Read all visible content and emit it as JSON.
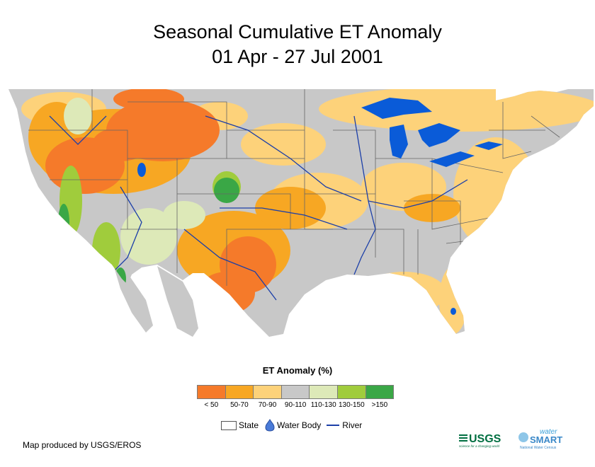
{
  "title": "Seasonal Cumulative ET Anomaly",
  "subtitle": "01 Apr - 27 Jul 2001",
  "legend": {
    "title": "ET Anomaly (%)",
    "classes": [
      {
        "label": "< 50",
        "color": "#f57a2a"
      },
      {
        "label": "50-70",
        "color": "#f7a723"
      },
      {
        "label": "70-90",
        "color": "#fdd27a"
      },
      {
        "label": "90-110",
        "color": "#c8c8c8"
      },
      {
        "label": "110-130",
        "color": "#dde9b8"
      },
      {
        "label": "130-150",
        "color": "#a0cc3c"
      },
      {
        "label": ">150",
        "color": "#3aa746"
      }
    ]
  },
  "key": {
    "state": "State",
    "water_body": "Water Body",
    "river": "River"
  },
  "credit": "Map produced by USGS/EROS",
  "logos": {
    "usgs": "USGS",
    "usgs_tagline": "science for a changing world",
    "watersmart_water": "water",
    "watersmart_smart": "SMART",
    "watersmart_tagline": "National Water Census"
  },
  "colors": {
    "water": "#0a5bd8",
    "river": "#1c3fa8",
    "state_border": "#666666"
  }
}
